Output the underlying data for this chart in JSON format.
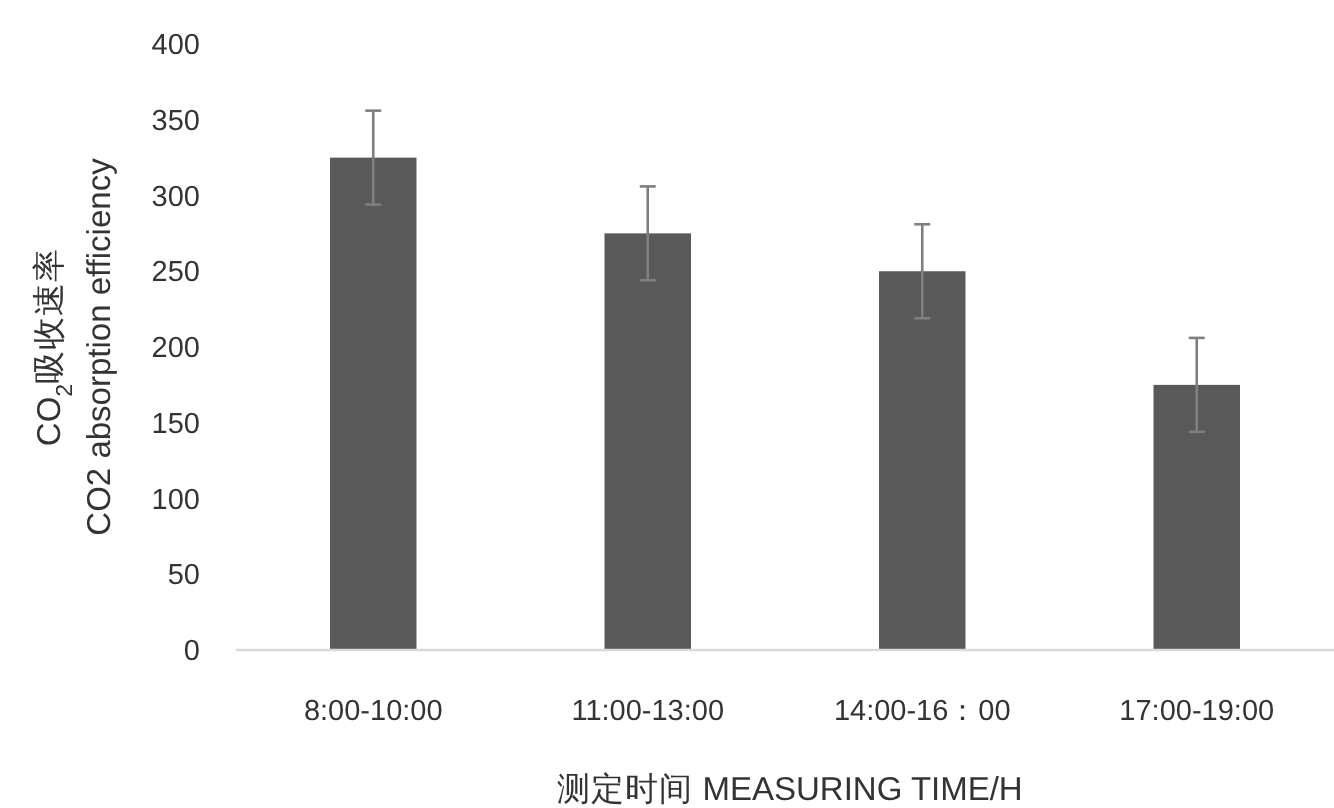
{
  "chart_data": {
    "type": "bar",
    "xlabel": "测定时间 MEASURING TIME/H",
    "ylabel": "CO$_{2}$吸收速率\nCO2 absorption efficiency",
    "categories": [
      "8:00-10:00",
      "11:00-13:00",
      "14:00-16：00",
      "17:00-19:00"
    ],
    "values": [
      325,
      275,
      250,
      175
    ],
    "errors": [
      31,
      31,
      31,
      31
    ],
    "color": "#595959",
    "ylim": [
      0,
      400
    ],
    "yticks": [
      0,
      50,
      100,
      150,
      200,
      250,
      300,
      350,
      400
    ],
    "grid": false
  }
}
